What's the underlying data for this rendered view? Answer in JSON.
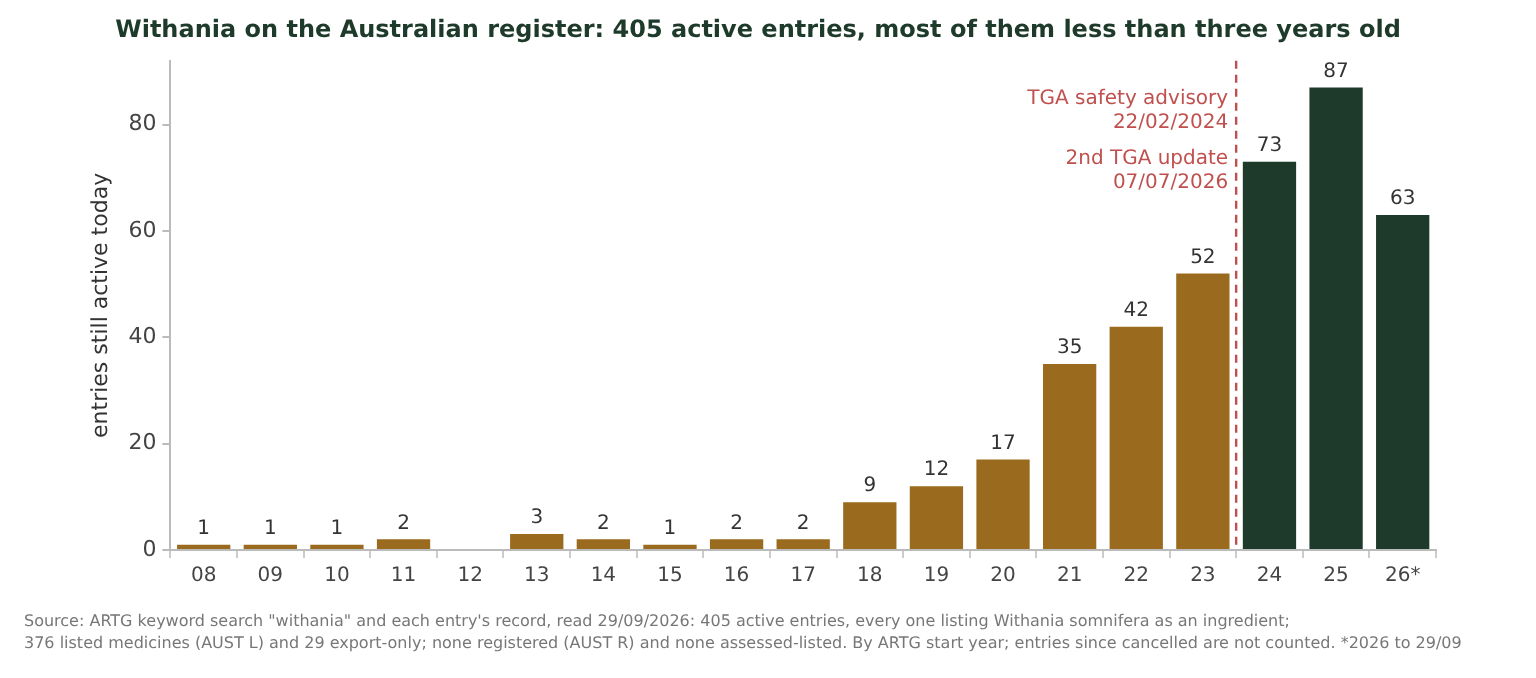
{
  "chart_data": {
    "type": "bar",
    "title": "Withania on the Australian register: 405 active entries, most of them less than three years old",
    "ylabel": "entries still active today",
    "categories": [
      "08",
      "09",
      "10",
      "11",
      "12",
      "13",
      "14",
      "15",
      "16",
      "17",
      "18",
      "19",
      "20",
      "21",
      "22",
      "23",
      "24",
      "25",
      "26*"
    ],
    "values": [
      1,
      1,
      1,
      2,
      0,
      3,
      2,
      1,
      2,
      2,
      9,
      12,
      17,
      35,
      42,
      52,
      73,
      87,
      63
    ],
    "value_labels": [
      "1",
      "1",
      "1",
      "2",
      null,
      "3",
      "2",
      "1",
      "2",
      "2",
      "9",
      "12",
      "17",
      "35",
      "42",
      "52",
      "73",
      "87",
      "63"
    ],
    "colors": [
      "#9a6a1e",
      "#9a6a1e",
      "#9a6a1e",
      "#9a6a1e",
      "#9a6a1e",
      "#9a6a1e",
      "#9a6a1e",
      "#9a6a1e",
      "#9a6a1e",
      "#9a6a1e",
      "#9a6a1e",
      "#9a6a1e",
      "#9a6a1e",
      "#9a6a1e",
      "#9a6a1e",
      "#9a6a1e",
      "#1e3a2a",
      "#1e3a2a",
      "#1e3a2a"
    ],
    "ylim": [
      0,
      92
    ],
    "yticks": [
      0,
      20,
      40,
      60,
      80
    ],
    "grid": false,
    "legend": false,
    "ref_lines": [
      {
        "axis": "x",
        "value": "24",
        "label": "TGA safety advisory\n22/02/2024",
        "color": "#c0504d",
        "line_style": "dashed"
      }
    ],
    "annotations": [
      "2nd TGA update\n07/07/2026",
      "Source: ARTG keyword search \"withania\" and each entry's record, read 29/09/2026: 405 active entries, every one listing Withania somnifera as an ingredient;\n376 listed medicines (AUST L) and 29 export-only; none registered (AUST R) and none assessed-listed. By ARTG start year; entries since cancelled are not counted. *2026 to 29/09"
    ]
  }
}
